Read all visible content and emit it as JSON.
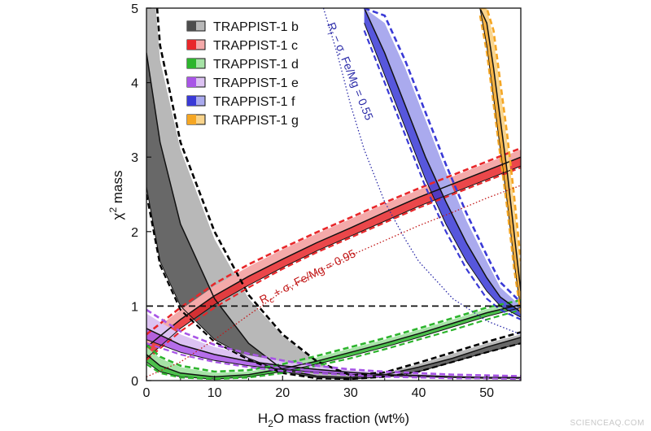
{
  "chart_data": {
    "type": "area",
    "xlabel_main": "H",
    "xlabel_sub": "2",
    "xlabel_rest": "O mass fraction (wt%)",
    "ylabel_main": "χ",
    "ylabel_sup": "2",
    "ylabel_rest": " mass",
    "xlim": [
      0,
      55
    ],
    "ylim": [
      0,
      5
    ],
    "xticks": [
      0,
      10,
      20,
      30,
      40,
      50
    ],
    "yticks": [
      0,
      1,
      2,
      3,
      4,
      5
    ],
    "threshold_line": 1,
    "legend_position": "top-left",
    "series": [
      {
        "name": "TRAPPIST-1 b",
        "color": "#4d4d4d",
        "light": "#b8b8b8",
        "x": [
          0,
          2,
          5,
          10,
          15,
          20,
          25,
          30,
          35,
          40,
          45,
          50,
          55
        ],
        "low": [
          2.6,
          1.6,
          1.0,
          0.55,
          0.3,
          0.12,
          0.04,
          0.02,
          0.05,
          0.12,
          0.25,
          0.38,
          0.5
        ],
        "mid": [
          4.4,
          3.2,
          2.1,
          1.1,
          0.5,
          0.15,
          0.06,
          0.04,
          0.08,
          0.18,
          0.3,
          0.45,
          0.58
        ],
        "high": [
          6.5,
          4.3,
          3.1,
          1.9,
          1.1,
          0.6,
          0.25,
          0.06,
          0.1,
          0.22,
          0.36,
          0.5,
          0.62
        ],
        "dashed_high": [
          6.8,
          4.5,
          3.2,
          2.0,
          1.15,
          0.62,
          0.26,
          0.07,
          0.11,
          0.24,
          0.38,
          0.52,
          0.65
        ],
        "dashed_low": [
          2.5,
          1.55,
          0.95,
          0.52,
          0.28,
          0.1,
          0.03,
          0.02,
          0.05,
          0.12,
          0.25,
          0.38,
          0.5
        ]
      },
      {
        "name": "TRAPPIST-1 c",
        "color": "#e8272a",
        "light": "#f4a9a9",
        "x": [
          0,
          5,
          10,
          15,
          20,
          25,
          30,
          35,
          40,
          45,
          50,
          55
        ],
        "low": [
          0.3,
          0.7,
          1.02,
          1.28,
          1.52,
          1.74,
          1.94,
          2.14,
          2.34,
          2.52,
          2.7,
          2.88
        ],
        "mid": [
          0.45,
          0.82,
          1.14,
          1.4,
          1.63,
          1.85,
          2.05,
          2.26,
          2.46,
          2.64,
          2.82,
          3.0
        ],
        "high": [
          0.6,
          0.95,
          1.27,
          1.53,
          1.76,
          1.97,
          2.17,
          2.37,
          2.56,
          2.74,
          2.92,
          3.1
        ],
        "dashed_high": [
          0.62,
          0.98,
          1.3,
          1.56,
          1.78,
          1.99,
          2.19,
          2.39,
          2.58,
          2.76,
          2.94,
          3.12
        ],
        "dashed_low": [
          0.28,
          0.66,
          0.98,
          1.25,
          1.5,
          1.72,
          1.92,
          2.12,
          2.32,
          2.5,
          2.68,
          2.86
        ]
      },
      {
        "name": "TRAPPIST-1 d",
        "color": "#2db52d",
        "light": "#a6e3a6",
        "x": [
          0,
          2,
          5,
          10,
          15,
          20,
          25,
          30,
          35,
          40,
          45,
          50,
          55
        ],
        "low": [
          0.25,
          0.12,
          0.05,
          0.02,
          0.05,
          0.12,
          0.22,
          0.33,
          0.45,
          0.58,
          0.72,
          0.86,
          0.98
        ],
        "mid": [
          0.35,
          0.2,
          0.1,
          0.05,
          0.08,
          0.16,
          0.26,
          0.38,
          0.5,
          0.63,
          0.77,
          0.91,
          1.02
        ],
        "high": [
          0.45,
          0.3,
          0.18,
          0.1,
          0.12,
          0.2,
          0.31,
          0.43,
          0.55,
          0.68,
          0.82,
          0.96,
          1.06
        ],
        "dashed_high": [
          0.48,
          0.32,
          0.2,
          0.12,
          0.14,
          0.22,
          0.33,
          0.45,
          0.57,
          0.7,
          0.84,
          0.98,
          1.08
        ],
        "dashed_low": [
          0.22,
          0.1,
          0.04,
          0.02,
          0.04,
          0.1,
          0.2,
          0.3,
          0.42,
          0.55,
          0.68,
          0.82,
          0.95
        ]
      },
      {
        "name": "TRAPPIST-1 e",
        "color": "#a855e6",
        "light": "#dcc2f2",
        "x": [
          0,
          5,
          10,
          15,
          20,
          25,
          30,
          35,
          40,
          45,
          50,
          55
        ],
        "low": [
          0.55,
          0.38,
          0.27,
          0.2,
          0.15,
          0.11,
          0.08,
          0.06,
          0.05,
          0.04,
          0.03,
          0.03
        ],
        "mid": [
          0.7,
          0.48,
          0.35,
          0.26,
          0.2,
          0.15,
          0.11,
          0.08,
          0.07,
          0.05,
          0.04,
          0.04
        ],
        "high": [
          0.9,
          0.62,
          0.45,
          0.34,
          0.26,
          0.19,
          0.14,
          0.11,
          0.09,
          0.07,
          0.06,
          0.05
        ],
        "dashed_high": [
          0.95,
          0.66,
          0.48,
          0.36,
          0.27,
          0.2,
          0.15,
          0.12,
          0.1,
          0.08,
          0.07,
          0.06
        ],
        "dashed_low": [
          0.5,
          0.35,
          0.25,
          0.18,
          0.13,
          0.1,
          0.07,
          0.05,
          0.04,
          0.03,
          0.03,
          0.02
        ]
      },
      {
        "name": "TRAPPIST-1 f",
        "color": "#3a3ad6",
        "light": "#aaaaee",
        "x": [
          32,
          35,
          38,
          41,
          44,
          47,
          50,
          52,
          55
        ],
        "low": [
          4.8,
          4.1,
          3.4,
          2.7,
          2.1,
          1.6,
          1.2,
          1.0,
          0.85
        ],
        "mid": [
          5.0,
          4.4,
          3.7,
          3.0,
          2.4,
          1.85,
          1.38,
          1.12,
          0.92
        ],
        "high": [
          5.0,
          4.8,
          4.2,
          3.5,
          2.8,
          2.15,
          1.6,
          1.25,
          1.0
        ],
        "dashed_high": [
          5.0,
          4.9,
          4.3,
          3.6,
          2.9,
          2.25,
          1.68,
          1.32,
          1.05
        ],
        "dashed_low": [
          4.7,
          4.0,
          3.3,
          2.6,
          2.0,
          1.5,
          1.1,
          0.95,
          0.82
        ]
      },
      {
        "name": "TRAPPIST-1 g",
        "color": "#f5a623",
        "light": "#f9d48c",
        "x": [
          49,
          50,
          51,
          52,
          53,
          54,
          55
        ],
        "low": [
          5.0,
          4.5,
          3.8,
          3.1,
          2.4,
          1.6,
          0.95
        ],
        "mid": [
          5.0,
          4.8,
          4.2,
          3.5,
          2.8,
          2.0,
          1.2
        ],
        "high": [
          5.0,
          5.0,
          4.6,
          3.9,
          3.2,
          2.4,
          1.5
        ],
        "dashed_high": [
          5.0,
          5.0,
          4.7,
          4.0,
          3.3,
          2.5,
          1.6
        ],
        "dashed_low": [
          4.9,
          4.4,
          3.7,
          3.0,
          2.3,
          1.5,
          0.9
        ]
      }
    ],
    "annotations": [
      {
        "label_main": "R",
        "label_sub": "f",
        "label_rest": " − σ, Fe/Mg = 0.55",
        "color": "#2a2aa8",
        "curve_x": [
          26,
          28,
          30,
          32,
          35,
          38,
          40,
          45,
          50,
          55
        ],
        "curve_y": [
          5.0,
          4.4,
          3.7,
          3.1,
          2.4,
          1.9,
          1.6,
          1.1,
          0.8,
          0.62
        ]
      },
      {
        "label_main": "R",
        "label_sub": "c",
        "label_rest": " + σ, Fe/Mg = 0.95",
        "color": "#c21818",
        "curve_x": [
          0,
          5,
          10,
          15,
          20,
          25,
          30,
          35,
          40,
          45,
          50,
          55
        ],
        "curve_y": [
          0.05,
          0.25,
          0.55,
          0.88,
          1.2,
          1.45,
          1.68,
          1.88,
          2.08,
          2.26,
          2.45,
          2.62
        ]
      }
    ]
  },
  "watermark": "SCIENCEAQ.COM"
}
